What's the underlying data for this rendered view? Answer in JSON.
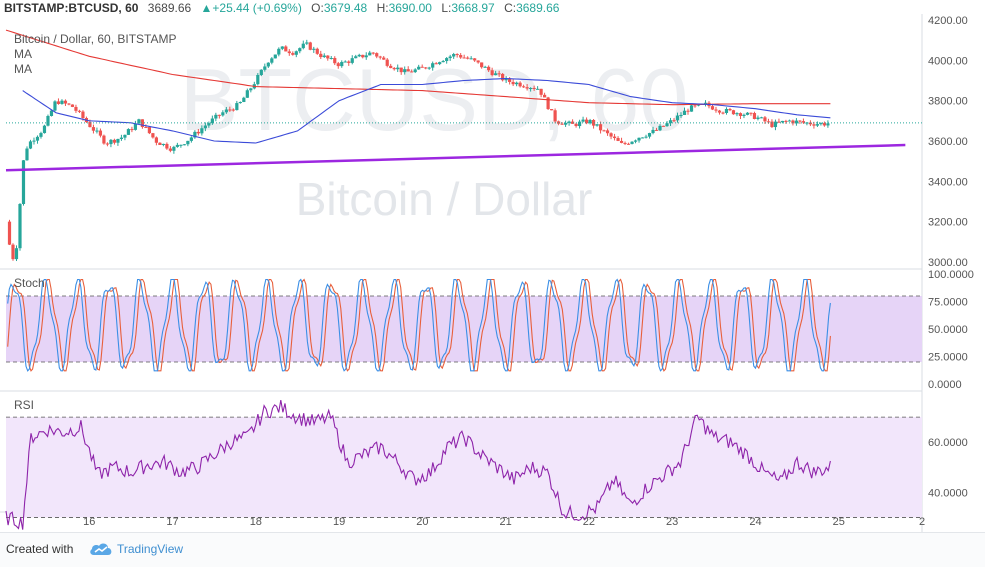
{
  "header": {
    "symbol": "BITSTAMP:BTCUSD, 60",
    "last": "3689.66",
    "change": "+25.44 (+0.69%)",
    "o_label": "O:",
    "o_value": "3679.48",
    "h_label": "H:",
    "h_value": "3690.00",
    "l_label": "L:",
    "l_value": "3668.97",
    "c_label": "C:",
    "c_value": "3689.66"
  },
  "price_pane": {
    "legend_title": "Bitcoin / Dollar, 60, BITSTAMP",
    "ma_labels": [
      "MA",
      "MA"
    ],
    "watermark_big": "BTCUSD, 60",
    "watermark_sub": "Bitcoin / Dollar"
  },
  "stoch_pane": {
    "label": "Stoch"
  },
  "rsi_pane": {
    "label": "RSI"
  },
  "footer": {
    "created_with": "Created with",
    "brand": "TradingView"
  },
  "colors": {
    "candle_up": "#26a69a",
    "candle_down": "#ef5350",
    "ma_fast": "#3b4bd8",
    "ma_slow": "#e53935",
    "trendline": "#9c27e0",
    "stoch_k": "#3b8fe6",
    "stoch_d": "#e8603c",
    "stoch_band": "#e6d4f7",
    "rsi_band": "#f2e6fb",
    "rsi_line": "#8e24aa"
  },
  "chart_data": [
    {
      "type": "candlestick",
      "title": "Bitcoin / Dollar, 60, BITSTAMP",
      "x_ticks": [
        "16",
        "17",
        "18",
        "19",
        "20",
        "21",
        "22",
        "23",
        "24",
        "25",
        "2"
      ],
      "y_ticks": [
        "3000.00",
        "3200.00",
        "3400.00",
        "3600.00",
        "3800.00",
        "4000.00",
        "4200.00"
      ],
      "ylim": [
        2970,
        4220
      ],
      "close_path": [
        [
          15.0,
          3200
        ],
        [
          15.07,
          3010
        ],
        [
          15.12,
          3050
        ],
        [
          15.17,
          3300
        ],
        [
          15.22,
          3550
        ],
        [
          15.3,
          3600
        ],
        [
          15.45,
          3660
        ],
        [
          15.6,
          3800
        ],
        [
          15.8,
          3770
        ],
        [
          16.0,
          3680
        ],
        [
          16.2,
          3590
        ],
        [
          16.4,
          3620
        ],
        [
          16.6,
          3700
        ],
        [
          16.8,
          3600
        ],
        [
          17.0,
          3560
        ],
        [
          17.2,
          3610
        ],
        [
          17.4,
          3680
        ],
        [
          17.6,
          3740
        ],
        [
          17.8,
          3780
        ],
        [
          18.0,
          3900
        ],
        [
          18.15,
          4000
        ],
        [
          18.3,
          4060
        ],
        [
          18.45,
          4040
        ],
        [
          18.6,
          4080
        ],
        [
          18.8,
          4020
        ],
        [
          19.0,
          3980
        ],
        [
          19.2,
          4010
        ],
        [
          19.4,
          4040
        ],
        [
          19.6,
          3980
        ],
        [
          19.8,
          3940
        ],
        [
          20.0,
          3960
        ],
        [
          20.2,
          4000
        ],
        [
          20.4,
          4030
        ],
        [
          20.6,
          4000
        ],
        [
          20.8,
          3950
        ],
        [
          21.0,
          3900
        ],
        [
          21.2,
          3880
        ],
        [
          21.4,
          3860
        ],
        [
          21.6,
          3700
        ],
        [
          21.8,
          3680
        ],
        [
          22.0,
          3700
        ],
        [
          22.2,
          3640
        ],
        [
          22.4,
          3580
        ],
        [
          22.6,
          3620
        ],
        [
          22.8,
          3650
        ],
        [
          23.0,
          3700
        ],
        [
          23.2,
          3760
        ],
        [
          23.4,
          3780
        ],
        [
          23.6,
          3750
        ],
        [
          23.8,
          3740
        ],
        [
          24.0,
          3720
        ],
        [
          24.2,
          3680
        ],
        [
          24.4,
          3700
        ],
        [
          24.6,
          3690
        ],
        [
          24.8,
          3685
        ],
        [
          24.9,
          3689.66
        ]
      ],
      "ma_fast_path": [
        [
          15.2,
          3850
        ],
        [
          15.6,
          3740
        ],
        [
          16.0,
          3700
        ],
        [
          16.5,
          3690
        ],
        [
          17.0,
          3650
        ],
        [
          17.5,
          3600
        ],
        [
          18.0,
          3590
        ],
        [
          18.5,
          3650
        ],
        [
          19.0,
          3800
        ],
        [
          19.5,
          3880
        ],
        [
          20.0,
          3880
        ],
        [
          20.5,
          3900
        ],
        [
          21.0,
          3910
        ],
        [
          21.5,
          3900
        ],
        [
          22.0,
          3880
        ],
        [
          22.5,
          3820
        ],
        [
          23.0,
          3790
        ],
        [
          23.5,
          3780
        ],
        [
          24.0,
          3760
        ],
        [
          24.5,
          3730
        ],
        [
          24.9,
          3715
        ]
      ],
      "ma_slow_path": [
        [
          15.0,
          4150
        ],
        [
          16.0,
          4020
        ],
        [
          17.0,
          3930
        ],
        [
          18.0,
          3870
        ],
        [
          19.0,
          3860
        ],
        [
          20.0,
          3850
        ],
        [
          21.0,
          3820
        ],
        [
          22.0,
          3790
        ],
        [
          23.0,
          3780
        ],
        [
          24.0,
          3785
        ],
        [
          24.9,
          3785
        ]
      ],
      "trendline": [
        [
          15.0,
          3455
        ],
        [
          25.8,
          3580
        ]
      ],
      "last_price": 3689.66
    },
    {
      "type": "line",
      "title": "Stoch",
      "y_ticks": [
        "0.0000",
        "25.0000",
        "50.0000",
        "75.0000",
        "100.0000"
      ],
      "ylim": [
        0,
        100
      ],
      "band": [
        20,
        80
      ],
      "oscillation_period_days": 0.38,
      "k_range": [
        12,
        95
      ],
      "last_k": 65,
      "last_d": 55
    },
    {
      "type": "line",
      "title": "RSI",
      "y_ticks": [
        "40.0000",
        "60.0000"
      ],
      "ylim": [
        25,
        80
      ],
      "band": [
        30,
        70
      ],
      "rsi_path": [
        [
          15.0,
          30
        ],
        [
          15.1,
          29
        ],
        [
          15.2,
          28
        ],
        [
          15.3,
          62
        ],
        [
          15.5,
          65
        ],
        [
          15.7,
          64
        ],
        [
          15.9,
          66
        ],
        [
          16.1,
          47
        ],
        [
          16.3,
          50
        ],
        [
          16.5,
          48
        ],
        [
          16.7,
          51
        ],
        [
          16.9,
          52
        ],
        [
          17.1,
          48
        ],
        [
          17.3,
          50
        ],
        [
          17.5,
          55
        ],
        [
          17.7,
          60
        ],
        [
          17.9,
          62
        ],
        [
          18.1,
          72
        ],
        [
          18.3,
          74
        ],
        [
          18.5,
          70
        ],
        [
          18.7,
          68
        ],
        [
          18.9,
          70
        ],
        [
          19.1,
          52
        ],
        [
          19.3,
          55
        ],
        [
          19.5,
          58
        ],
        [
          19.7,
          52
        ],
        [
          19.9,
          45
        ],
        [
          20.1,
          48
        ],
        [
          20.3,
          58
        ],
        [
          20.5,
          62
        ],
        [
          20.7,
          55
        ],
        [
          20.9,
          50
        ],
        [
          21.1,
          45
        ],
        [
          21.3,
          50
        ],
        [
          21.5,
          48
        ],
        [
          21.7,
          32
        ],
        [
          21.9,
          31
        ],
        [
          22.1,
          34
        ],
        [
          22.3,
          45
        ],
        [
          22.5,
          35
        ],
        [
          22.7,
          42
        ],
        [
          22.9,
          47
        ],
        [
          23.1,
          52
        ],
        [
          23.3,
          70
        ],
        [
          23.5,
          62
        ],
        [
          23.7,
          60
        ],
        [
          23.9,
          55
        ],
        [
          24.1,
          48
        ],
        [
          24.3,
          44
        ],
        [
          24.5,
          52
        ],
        [
          24.7,
          48
        ],
        [
          24.9,
          50
        ]
      ]
    }
  ]
}
